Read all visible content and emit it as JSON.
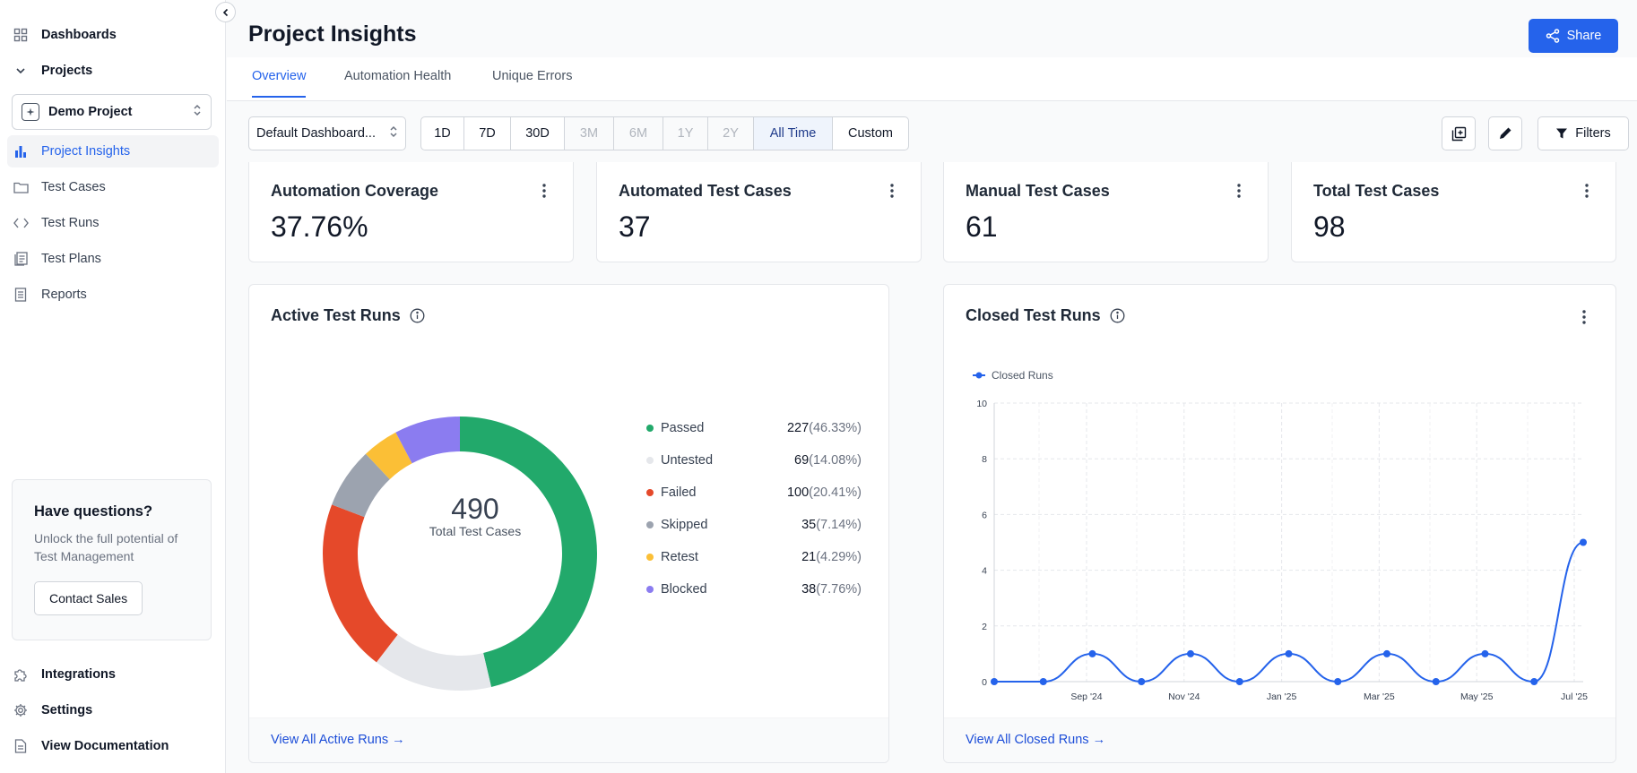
{
  "sidebar": {
    "dashboards": "Dashboards",
    "projects": "Projects",
    "project_selector": "Demo Project",
    "items": [
      {
        "label": "Project Insights",
        "icon": "bar-chart-icon"
      },
      {
        "label": "Test Cases",
        "icon": "folder-icon"
      },
      {
        "label": "Test Runs",
        "icon": "code-icon"
      },
      {
        "label": "Test Plans",
        "icon": "document-list-icon"
      },
      {
        "label": "Reports",
        "icon": "report-icon"
      }
    ],
    "help": {
      "title": "Have questions?",
      "text": "Unlock the full potential of Test Management",
      "button": "Contact Sales"
    },
    "bottom": {
      "integrations": "Integrations",
      "settings": "Settings",
      "documentation": "View Documentation"
    }
  },
  "header": {
    "title": "Project Insights",
    "share": "Share"
  },
  "tabs": [
    "Overview",
    "Automation Health",
    "Unique Errors"
  ],
  "toolbar": {
    "dashboard_select": "Default Dashboard...",
    "ranges": [
      "1D",
      "7D",
      "30D",
      "3M",
      "6M",
      "1Y",
      "2Y",
      "All Time",
      "Custom"
    ],
    "active_range": "All Time",
    "filters": "Filters"
  },
  "stats": [
    {
      "label": "Automation Coverage",
      "value": "37.76%"
    },
    {
      "label": "Automated Test Cases",
      "value": "37"
    },
    {
      "label": "Manual Test Cases",
      "value": "61"
    },
    {
      "label": "Total Test Cases",
      "value": "98"
    }
  ],
  "active_runs": {
    "title": "Active Test Runs",
    "center_value": "490",
    "center_label": "Total Test Cases",
    "footer": "View All Active Runs →"
  },
  "closed_runs": {
    "title": "Closed Test Runs",
    "footer": "View All Closed Runs →"
  },
  "colors": {
    "accent": "#2563eb",
    "passed": "#22a96b",
    "untested": "#e5e7eb",
    "failed": "#e5492a",
    "skipped": "#9ca3af",
    "retest": "#fbbf36",
    "blocked": "#8b7cf0"
  },
  "chart_data": [
    {
      "type": "pie",
      "title": "Active Test Runs",
      "categories": [
        "Passed",
        "Untested",
        "Failed",
        "Skipped",
        "Retest",
        "Blocked"
      ],
      "values": [
        227,
        69,
        100,
        35,
        21,
        38
      ],
      "labels": [
        "(46.33%)",
        "(14.08%)",
        "(20.41%)",
        "(7.14%)",
        "(4.29%)",
        "(7.76%)"
      ]
    },
    {
      "type": "line",
      "title": "Closed Test Runs",
      "series": [
        {
          "name": "Closed Runs",
          "values": [
            0,
            0,
            1,
            0,
            1,
            0,
            1,
            0,
            1,
            0,
            1,
            0,
            5
          ]
        }
      ],
      "x_ticks": [
        "Sep '24",
        "Nov '24",
        "Jan '25",
        "Mar '25",
        "May '25",
        "Jul '25"
      ],
      "y_ticks": [
        "0",
        "2",
        "4",
        "6",
        "8",
        "10"
      ],
      "ylim": [
        0,
        10
      ],
      "grid": true,
      "legend": "top-left"
    }
  ]
}
